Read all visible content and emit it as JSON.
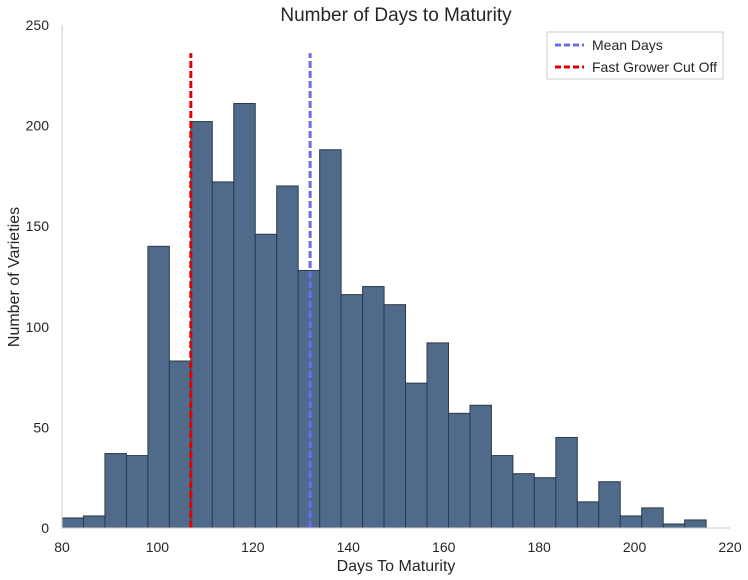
{
  "chart_data": {
    "type": "bar",
    "title": "Number of Days to Maturity",
    "xlabel": "Days To Maturity",
    "ylabel": "Number of Varieties",
    "xlim": [
      80,
      220
    ],
    "ylim": [
      0,
      250
    ],
    "x_ticks": [
      80,
      100,
      120,
      140,
      160,
      180,
      200,
      220
    ],
    "y_ticks": [
      0,
      50,
      100,
      150,
      200,
      250
    ],
    "grid": false,
    "legend_position": "top-right",
    "bar_color": "#4f6a8a",
    "bins": [
      {
        "x0": 80.0,
        "x1": 84.5,
        "count": 5
      },
      {
        "x0": 84.5,
        "x1": 89.0,
        "count": 6
      },
      {
        "x0": 89.0,
        "x1": 93.5,
        "count": 37
      },
      {
        "x0": 93.5,
        "x1": 98.0,
        "count": 36
      },
      {
        "x0": 98.0,
        "x1": 102.5,
        "count": 140
      },
      {
        "x0": 102.5,
        "x1": 107.0,
        "count": 83
      },
      {
        "x0": 107.0,
        "x1": 111.5,
        "count": 202
      },
      {
        "x0": 111.5,
        "x1": 116.0,
        "count": 172
      },
      {
        "x0": 116.0,
        "x1": 120.5,
        "count": 211
      },
      {
        "x0": 120.5,
        "x1": 125.0,
        "count": 146
      },
      {
        "x0": 125.0,
        "x1": 129.5,
        "count": 170
      },
      {
        "x0": 129.5,
        "x1": 134.0,
        "count": 128
      },
      {
        "x0": 134.0,
        "x1": 138.5,
        "count": 188
      },
      {
        "x0": 138.5,
        "x1": 143.0,
        "count": 116
      },
      {
        "x0": 143.0,
        "x1": 147.5,
        "count": 120
      },
      {
        "x0": 147.5,
        "x1": 152.0,
        "count": 111
      },
      {
        "x0": 152.0,
        "x1": 156.5,
        "count": 72
      },
      {
        "x0": 156.5,
        "x1": 161.0,
        "count": 92
      },
      {
        "x0": 161.0,
        "x1": 165.5,
        "count": 57
      },
      {
        "x0": 165.5,
        "x1": 170.0,
        "count": 61
      },
      {
        "x0": 170.0,
        "x1": 174.5,
        "count": 36
      },
      {
        "x0": 174.5,
        "x1": 179.0,
        "count": 27
      },
      {
        "x0": 179.0,
        "x1": 183.5,
        "count": 25
      },
      {
        "x0": 183.5,
        "x1": 188.0,
        "count": 45
      },
      {
        "x0": 188.0,
        "x1": 192.5,
        "count": 13
      },
      {
        "x0": 192.5,
        "x1": 197.0,
        "count": 23
      },
      {
        "x0": 197.0,
        "x1": 201.5,
        "count": 6
      },
      {
        "x0": 201.5,
        "x1": 206.0,
        "count": 10
      },
      {
        "x0": 206.0,
        "x1": 210.5,
        "count": 2
      },
      {
        "x0": 210.5,
        "x1": 215.0,
        "count": 4
      }
    ],
    "reference_lines": [
      {
        "name": "Mean Days",
        "x": 132,
        "y_top": 236,
        "color": "#6b6bf0",
        "style": "dashed"
      },
      {
        "name": "Fast Grower Cut Off",
        "x": 107,
        "y_top": 236,
        "color": "#e00000",
        "style": "dashed"
      }
    ]
  }
}
